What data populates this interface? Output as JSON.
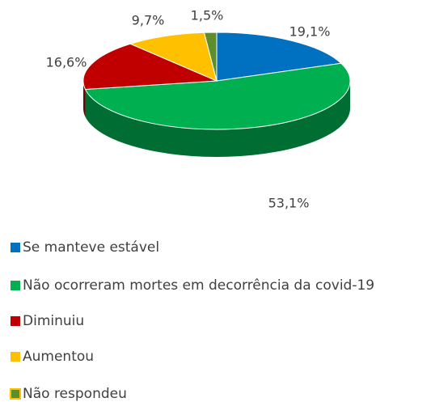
{
  "chart_data": {
    "type": "pie",
    "categories": [
      "Se manteve estável",
      "Não ocorreram mortes em decorrência da covid-19",
      "Diminuiu",
      "Aumentou",
      "Não respondeu"
    ],
    "values": [
      19.1,
      53.1,
      16.6,
      9.7,
      1.5
    ],
    "value_labels": [
      "19,1%",
      "53,1%",
      "16,6%",
      "9,7%",
      "1,5%"
    ],
    "colors": [
      "#0070c0",
      "#00b050",
      "#c00000",
      "#ffc000",
      "#5e8e2c"
    ]
  }
}
